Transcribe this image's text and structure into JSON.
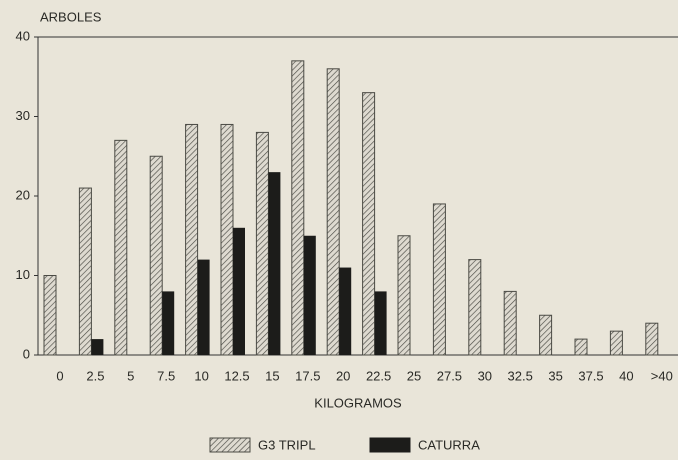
{
  "chart_data": {
    "type": "bar",
    "ylabel": "ARBOLES",
    "xlabel": "KILOGRAMOS",
    "categories": [
      "0",
      "2.5",
      "5",
      "7.5",
      "10",
      "12.5",
      "15",
      "17.5",
      "20",
      "22.5",
      "25",
      "27.5",
      "30",
      "32.5",
      "35",
      "37.5",
      "40",
      ">40"
    ],
    "series": [
      {
        "name": "G3 TRIPL",
        "color": "#4a4a44",
        "hatch": true,
        "values": [
          10,
          21,
          27,
          25,
          29,
          29,
          28,
          37,
          36,
          33,
          15,
          19,
          12,
          8,
          5,
          2,
          3,
          4
        ]
      },
      {
        "name": "CATURRA",
        "color": "#1c1c1a",
        "hatch": false,
        "values": [
          0,
          2,
          0,
          8,
          12,
          16,
          23,
          15,
          11,
          8,
          0,
          0,
          0,
          0,
          0,
          0,
          0,
          0
        ]
      }
    ],
    "ylim": [
      0,
      40
    ],
    "yticks": [
      0,
      10,
      20,
      30,
      40
    ],
    "grid": false,
    "legend": "bottom"
  }
}
